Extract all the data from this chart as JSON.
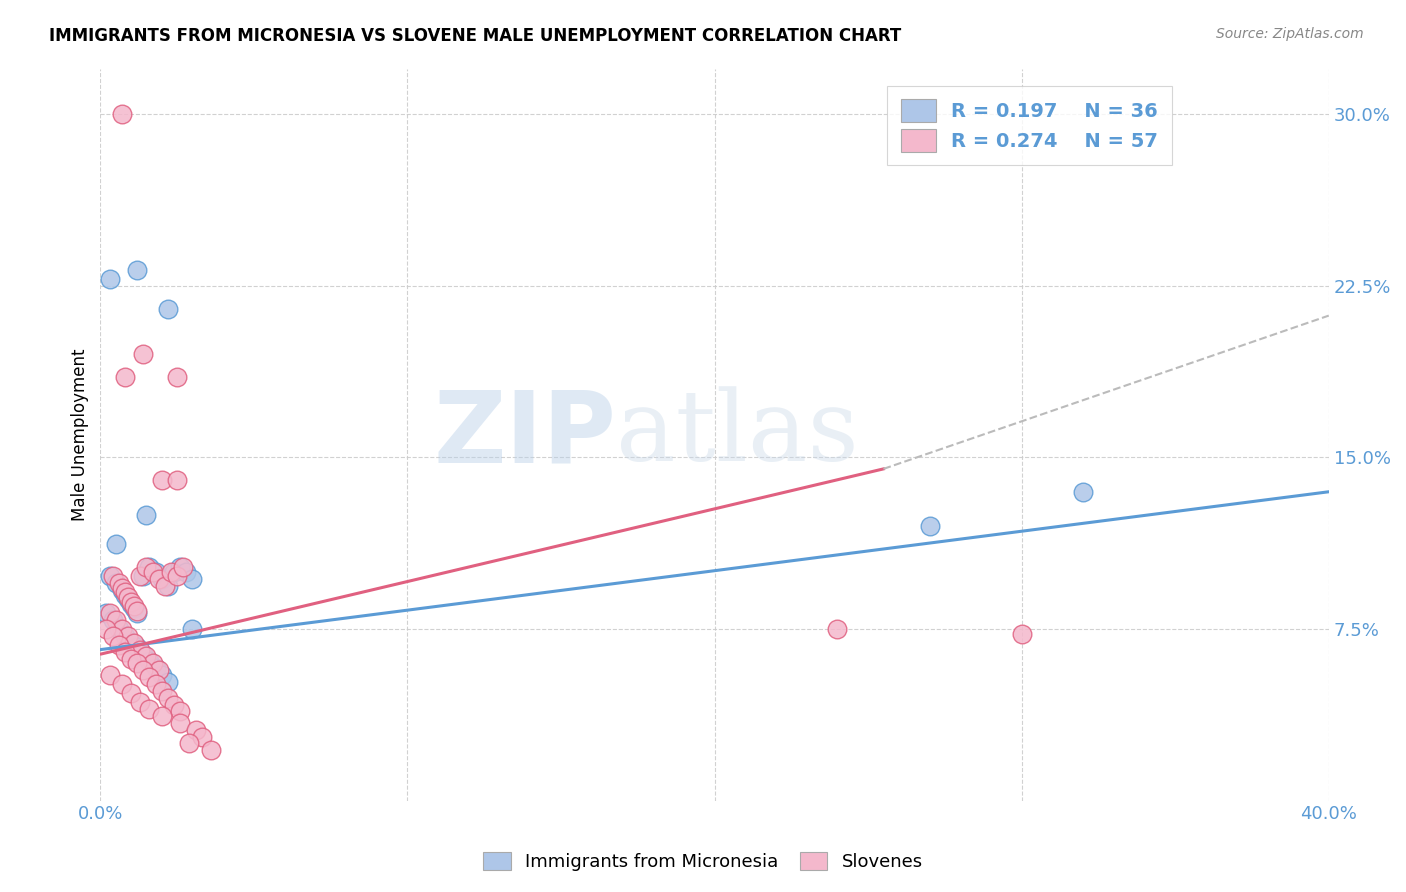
{
  "title": "IMMIGRANTS FROM MICRONESIA VS SLOVENE MALE UNEMPLOYMENT CORRELATION CHART",
  "source": "Source: ZipAtlas.com",
  "ylabel": "Male Unemployment",
  "yticks": [
    "7.5%",
    "15.0%",
    "22.5%",
    "30.0%"
  ],
  "ytick_vals": [
    0.075,
    0.15,
    0.225,
    0.3
  ],
  "xmin": 0.0,
  "xmax": 0.4,
  "ymin": 0.0,
  "ymax": 0.32,
  "legend_r1": "R = 0.197",
  "legend_n1": "N = 36",
  "legend_r2": "R = 0.274",
  "legend_n2": "N = 57",
  "color_blue": "#aec6e8",
  "color_pink": "#f4b8cc",
  "line_blue": "#5b9bd5",
  "line_pink": "#e06080",
  "line_dashed_color": "#bbbbbb",
  "watermark_zip": "ZIP",
  "watermark_atlas": "atlas",
  "blue_points": [
    [
      0.003,
      0.228
    ],
    [
      0.012,
      0.232
    ],
    [
      0.022,
      0.215
    ],
    [
      0.005,
      0.112
    ],
    [
      0.015,
      0.125
    ],
    [
      0.003,
      0.098
    ],
    [
      0.005,
      0.095
    ],
    [
      0.007,
      0.092
    ],
    [
      0.008,
      0.09
    ],
    [
      0.009,
      0.088
    ],
    [
      0.01,
      0.086
    ],
    [
      0.011,
      0.084
    ],
    [
      0.012,
      0.082
    ],
    [
      0.014,
      0.098
    ],
    [
      0.016,
      0.102
    ],
    [
      0.018,
      0.1
    ],
    [
      0.02,
      0.097
    ],
    [
      0.022,
      0.094
    ],
    [
      0.024,
      0.1
    ],
    [
      0.026,
      0.102
    ],
    [
      0.028,
      0.1
    ],
    [
      0.03,
      0.097
    ],
    [
      0.002,
      0.082
    ],
    [
      0.004,
      0.079
    ],
    [
      0.006,
      0.075
    ],
    [
      0.008,
      0.072
    ],
    [
      0.01,
      0.069
    ],
    [
      0.012,
      0.067
    ],
    [
      0.014,
      0.064
    ],
    [
      0.016,
      0.061
    ],
    [
      0.018,
      0.058
    ],
    [
      0.02,
      0.055
    ],
    [
      0.022,
      0.052
    ],
    [
      0.27,
      0.12
    ],
    [
      0.32,
      0.135
    ],
    [
      0.03,
      0.075
    ]
  ],
  "pink_points": [
    [
      0.007,
      0.3
    ],
    [
      0.014,
      0.195
    ],
    [
      0.025,
      0.185
    ],
    [
      0.008,
      0.185
    ],
    [
      0.02,
      0.14
    ],
    [
      0.025,
      0.14
    ],
    [
      0.004,
      0.098
    ],
    [
      0.006,
      0.095
    ],
    [
      0.007,
      0.093
    ],
    [
      0.008,
      0.091
    ],
    [
      0.009,
      0.089
    ],
    [
      0.01,
      0.087
    ],
    [
      0.011,
      0.085
    ],
    [
      0.012,
      0.083
    ],
    [
      0.013,
      0.098
    ],
    [
      0.015,
      0.102
    ],
    [
      0.017,
      0.1
    ],
    [
      0.019,
      0.097
    ],
    [
      0.021,
      0.094
    ],
    [
      0.023,
      0.1
    ],
    [
      0.025,
      0.098
    ],
    [
      0.027,
      0.102
    ],
    [
      0.003,
      0.082
    ],
    [
      0.005,
      0.079
    ],
    [
      0.007,
      0.075
    ],
    [
      0.009,
      0.072
    ],
    [
      0.011,
      0.069
    ],
    [
      0.013,
      0.066
    ],
    [
      0.015,
      0.063
    ],
    [
      0.017,
      0.06
    ],
    [
      0.019,
      0.057
    ],
    [
      0.002,
      0.075
    ],
    [
      0.004,
      0.072
    ],
    [
      0.006,
      0.068
    ],
    [
      0.008,
      0.065
    ],
    [
      0.01,
      0.062
    ],
    [
      0.012,
      0.06
    ],
    [
      0.014,
      0.057
    ],
    [
      0.016,
      0.054
    ],
    [
      0.018,
      0.051
    ],
    [
      0.02,
      0.048
    ],
    [
      0.022,
      0.045
    ],
    [
      0.024,
      0.042
    ],
    [
      0.026,
      0.039
    ],
    [
      0.003,
      0.055
    ],
    [
      0.007,
      0.051
    ],
    [
      0.01,
      0.047
    ],
    [
      0.013,
      0.043
    ],
    [
      0.016,
      0.04
    ],
    [
      0.02,
      0.037
    ],
    [
      0.026,
      0.034
    ],
    [
      0.031,
      0.031
    ],
    [
      0.24,
      0.075
    ],
    [
      0.3,
      0.073
    ],
    [
      0.033,
      0.028
    ],
    [
      0.029,
      0.025
    ],
    [
      0.036,
      0.022
    ]
  ],
  "blue_line_x": [
    0.0,
    0.4
  ],
  "blue_line_y": [
    0.066,
    0.135
  ],
  "pink_line_x": [
    0.0,
    0.255
  ],
  "pink_line_y": [
    0.064,
    0.145
  ],
  "dash_line_x": [
    0.255,
    0.4
  ],
  "dash_line_y": [
    0.145,
    0.212
  ]
}
